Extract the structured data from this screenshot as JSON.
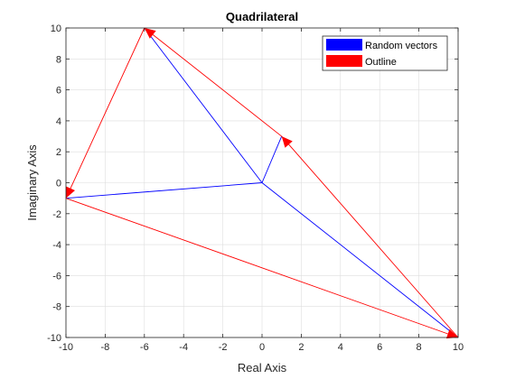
{
  "chart_data": {
    "type": "line",
    "title": "Quadrilateral",
    "xlabel": "Real Axis",
    "ylabel": "Imaginary Axis",
    "xlim": [
      -10,
      10
    ],
    "ylim": [
      -10,
      10
    ],
    "xticks": [
      -10,
      -8,
      -6,
      -4,
      -2,
      0,
      2,
      4,
      6,
      8,
      10
    ],
    "yticks": [
      -10,
      -8,
      -6,
      -4,
      -2,
      0,
      2,
      4,
      6,
      8,
      10
    ],
    "grid": true,
    "legend_placement": "top-right",
    "series": [
      {
        "name": "Random vectors",
        "color": "#0000ff",
        "kind": "vectors-from-origin",
        "points": [
          {
            "x": 1,
            "y": 3
          },
          {
            "x": -6,
            "y": 10
          },
          {
            "x": -10,
            "y": -1
          },
          {
            "x": 10,
            "y": -10
          }
        ]
      },
      {
        "name": "Outline",
        "color": "#ff0000",
        "kind": "arrow-chain",
        "points": [
          {
            "x": 10,
            "y": -10
          },
          {
            "x": 1,
            "y": 3
          },
          {
            "x": -6,
            "y": 10
          },
          {
            "x": -10,
            "y": -1
          },
          {
            "x": 10,
            "y": -10
          }
        ]
      }
    ]
  }
}
